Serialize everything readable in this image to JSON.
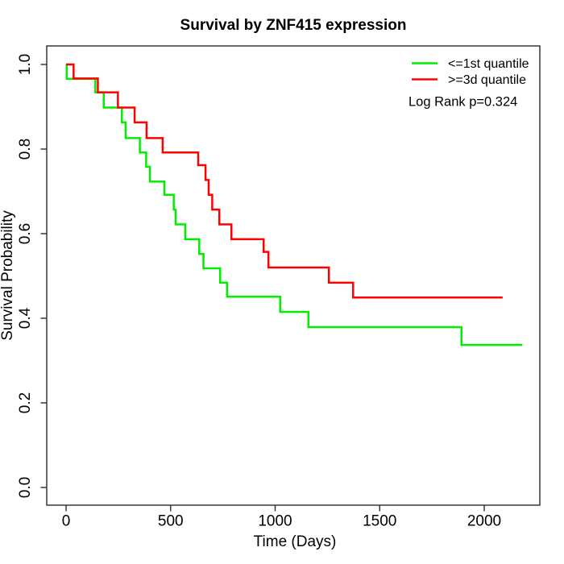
{
  "title": "Survival by ZNF415 expression",
  "axes": {
    "x_label": "Time (Days)",
    "y_label": "Survival Probability",
    "x_ticks": [
      0,
      500,
      1000,
      1500,
      2000
    ],
    "y_ticks": [
      0.0,
      0.2,
      0.4,
      0.6,
      0.8,
      1.0
    ],
    "y_tick_labels": [
      "0.0",
      "0.2",
      "0.4",
      "0.6",
      "0.8",
      "1.0"
    ]
  },
  "legend": {
    "items": [
      {
        "label": "<=1st quantile",
        "color": "#00ee00"
      },
      {
        "label": ">=3d quantile",
        "color": "#ff0000"
      }
    ],
    "note": "Log Rank p=0.324"
  },
  "chart_data": {
    "type": "line",
    "subtype": "kaplan-meier-step",
    "title": "Survival by ZNF415 expression",
    "xlabel": "Time (Days)",
    "ylabel": "Survival Probability",
    "xlim": [
      0,
      2200
    ],
    "ylim": [
      0.0,
      1.0
    ],
    "grid": false,
    "legend_position": "top-right",
    "annotation": "Log Rank p=0.324",
    "series": [
      {
        "name": "<=1st quantile",
        "color": "#00ee00",
        "end_time": 2182,
        "points": [
          [
            0,
            1.0
          ],
          [
            3,
            0.966
          ],
          [
            140,
            0.934
          ],
          [
            180,
            0.898
          ],
          [
            267,
            0.863
          ],
          [
            285,
            0.826
          ],
          [
            353,
            0.792
          ],
          [
            383,
            0.758
          ],
          [
            401,
            0.723
          ],
          [
            470,
            0.692
          ],
          [
            515,
            0.657
          ],
          [
            524,
            0.622
          ],
          [
            570,
            0.587
          ],
          [
            637,
            0.552
          ],
          [
            657,
            0.518
          ],
          [
            737,
            0.484
          ],
          [
            770,
            0.451
          ],
          [
            1024,
            0.415
          ],
          [
            1159,
            0.379
          ],
          [
            1891,
            0.337
          ]
        ]
      },
      {
        "name": ">=3d quantile",
        "color": "#ff0000",
        "end_time": 2088,
        "points": [
          [
            0,
            1.0
          ],
          [
            36,
            0.967
          ],
          [
            152,
            0.934
          ],
          [
            248,
            0.898
          ],
          [
            328,
            0.863
          ],
          [
            385,
            0.826
          ],
          [
            462,
            0.792
          ],
          [
            632,
            0.762
          ],
          [
            667,
            0.727
          ],
          [
            682,
            0.692
          ],
          [
            699,
            0.657
          ],
          [
            733,
            0.622
          ],
          [
            791,
            0.587
          ],
          [
            945,
            0.557
          ],
          [
            968,
            0.52
          ],
          [
            1257,
            0.484
          ],
          [
            1373,
            0.449
          ]
        ]
      }
    ]
  }
}
